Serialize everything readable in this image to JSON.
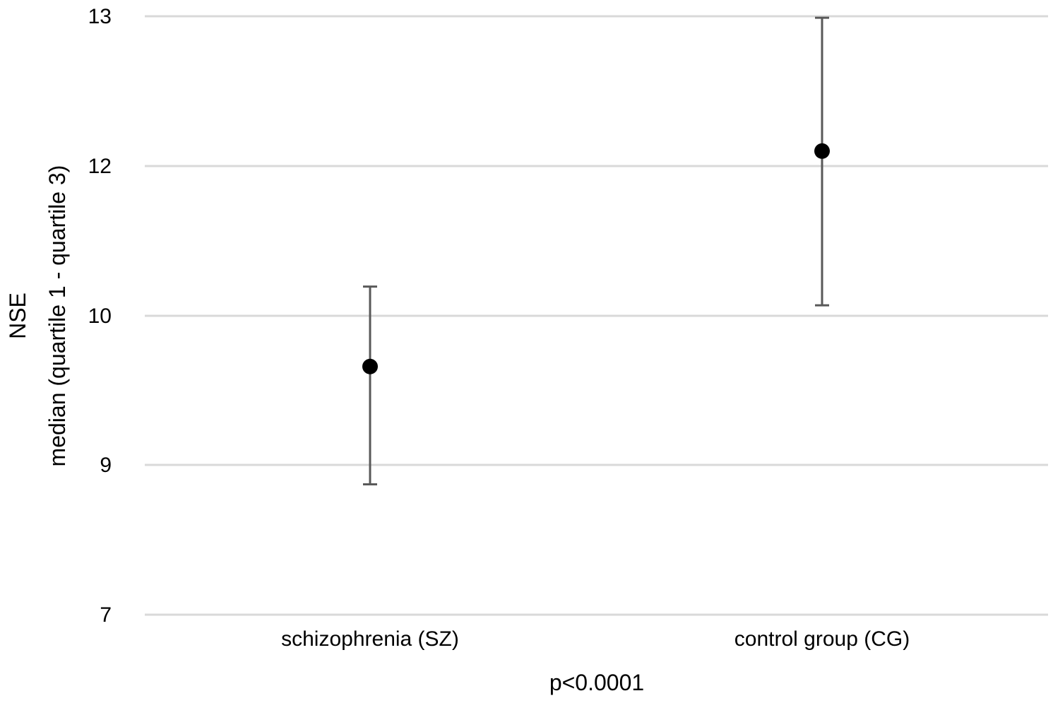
{
  "chart_data": {
    "type": "scatter",
    "title": "",
    "xlabel": "p<0.0001",
    "ylabel": [
      "NSE",
      "median (quartile 1 - quartile 3)"
    ],
    "categories": [
      "schizophrenia (SZ)",
      "control group (CG)"
    ],
    "series": [
      {
        "median": [
          9.66,
          12.1
        ],
        "q1": [
          8.74,
          10.14
        ],
        "q3": [
          10.39,
          12.99
        ]
      }
    ],
    "yticks": [
      {
        "value": 7,
        "label": "7"
      },
      {
        "value": 9,
        "label": "9"
      },
      {
        "value": 10,
        "label": "10"
      },
      {
        "value": 12,
        "label": "12"
      },
      {
        "value": 13,
        "label": "13"
      }
    ],
    "ylim": [
      7,
      13
    ],
    "grid": true,
    "colors": {
      "gridline": "#d9d9d9",
      "errorbar": "#595959",
      "marker": "#000000"
    }
  }
}
